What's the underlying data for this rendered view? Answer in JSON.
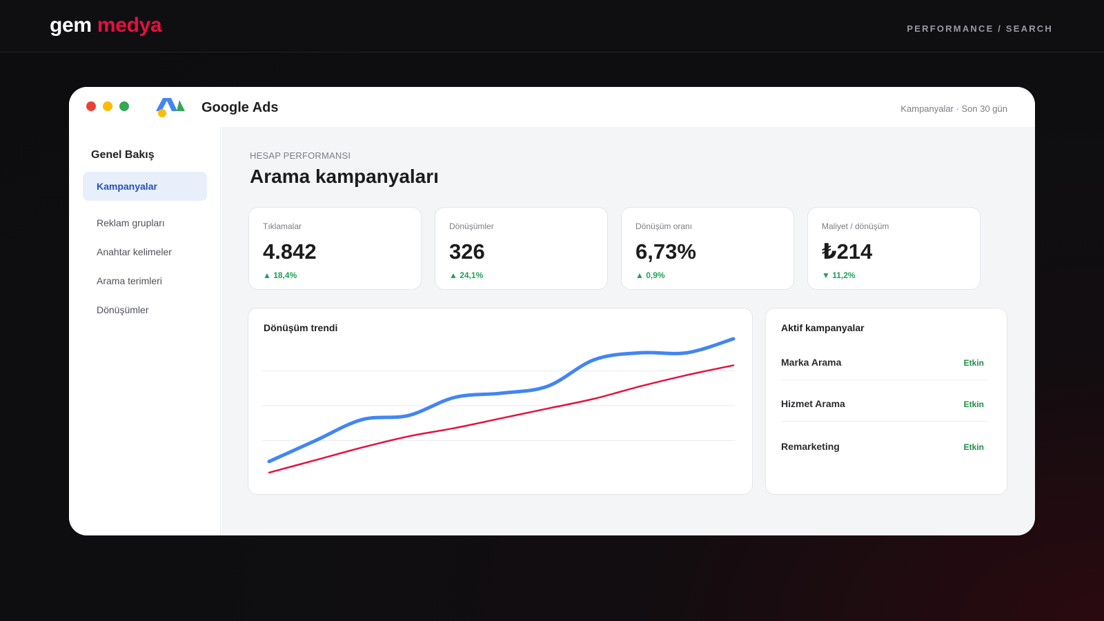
{
  "brand": {
    "part1": "gem",
    "part2": "medya"
  },
  "top_crumb": "PERFORMANCE / SEARCH",
  "window": {
    "app_title": "Google Ads",
    "crumb": "Kampanyalar · Son 30 gün",
    "logo_icon": "google-ads-logo",
    "colors": {
      "blue": "#4285f4",
      "yellow": "#fbbc05",
      "green": "#34a853",
      "red": "#ea4335"
    }
  },
  "sidebar": {
    "heading": "Genel Bakış",
    "items": [
      {
        "label": "Kampanyalar",
        "active": true
      },
      {
        "label": "Reklam grupları",
        "active": false
      },
      {
        "label": "Anahtar kelimeler",
        "active": false
      },
      {
        "label": "Arama terimleri",
        "active": false
      },
      {
        "label": "Dönüşümler",
        "active": false
      }
    ]
  },
  "main": {
    "eyebrow": "HESAP PERFORMANSI",
    "title": "Arama kampanyaları",
    "kpis": [
      {
        "label": "Tıklamalar",
        "value": "4.842",
        "delta": "▲ 18,4%"
      },
      {
        "label": "Dönüşümler",
        "value": "326",
        "delta": "▲ 24,1%"
      },
      {
        "label": "Dönüşüm oranı",
        "value": "6,73%",
        "delta": "▲ 0,9%"
      },
      {
        "label": "Maliyet / dönüşüm",
        "value": "₺214",
        "delta": "▼ 11,2%"
      }
    ],
    "delta_color": "#1fa055"
  },
  "chart_data": {
    "type": "line",
    "title": "Dönüşüm trendi",
    "xlabel": "",
    "ylabel": "",
    "ylim": [
      0,
      100
    ],
    "grid": true,
    "legend": "none",
    "x": [
      0,
      1,
      2,
      3,
      4,
      5,
      6,
      7,
      8,
      9,
      10
    ],
    "series": [
      {
        "color": "#4285f4",
        "values": [
          10,
          25,
          40,
          43,
          56,
          59,
          64,
          83,
          88,
          88,
          98
        ]
      },
      {
        "color": "#e6103f",
        "values": [
          2,
          11,
          20,
          28,
          34,
          41,
          48,
          55,
          64,
          72,
          79
        ]
      }
    ]
  },
  "campaigns": {
    "title": "Aktif kampanyalar",
    "items": [
      {
        "name": "Marka Arama",
        "status": "Etkin"
      },
      {
        "name": "Hizmet Arama",
        "status": "Etkin"
      },
      {
        "name": "Remarketing",
        "status": "Etkin"
      }
    ]
  }
}
